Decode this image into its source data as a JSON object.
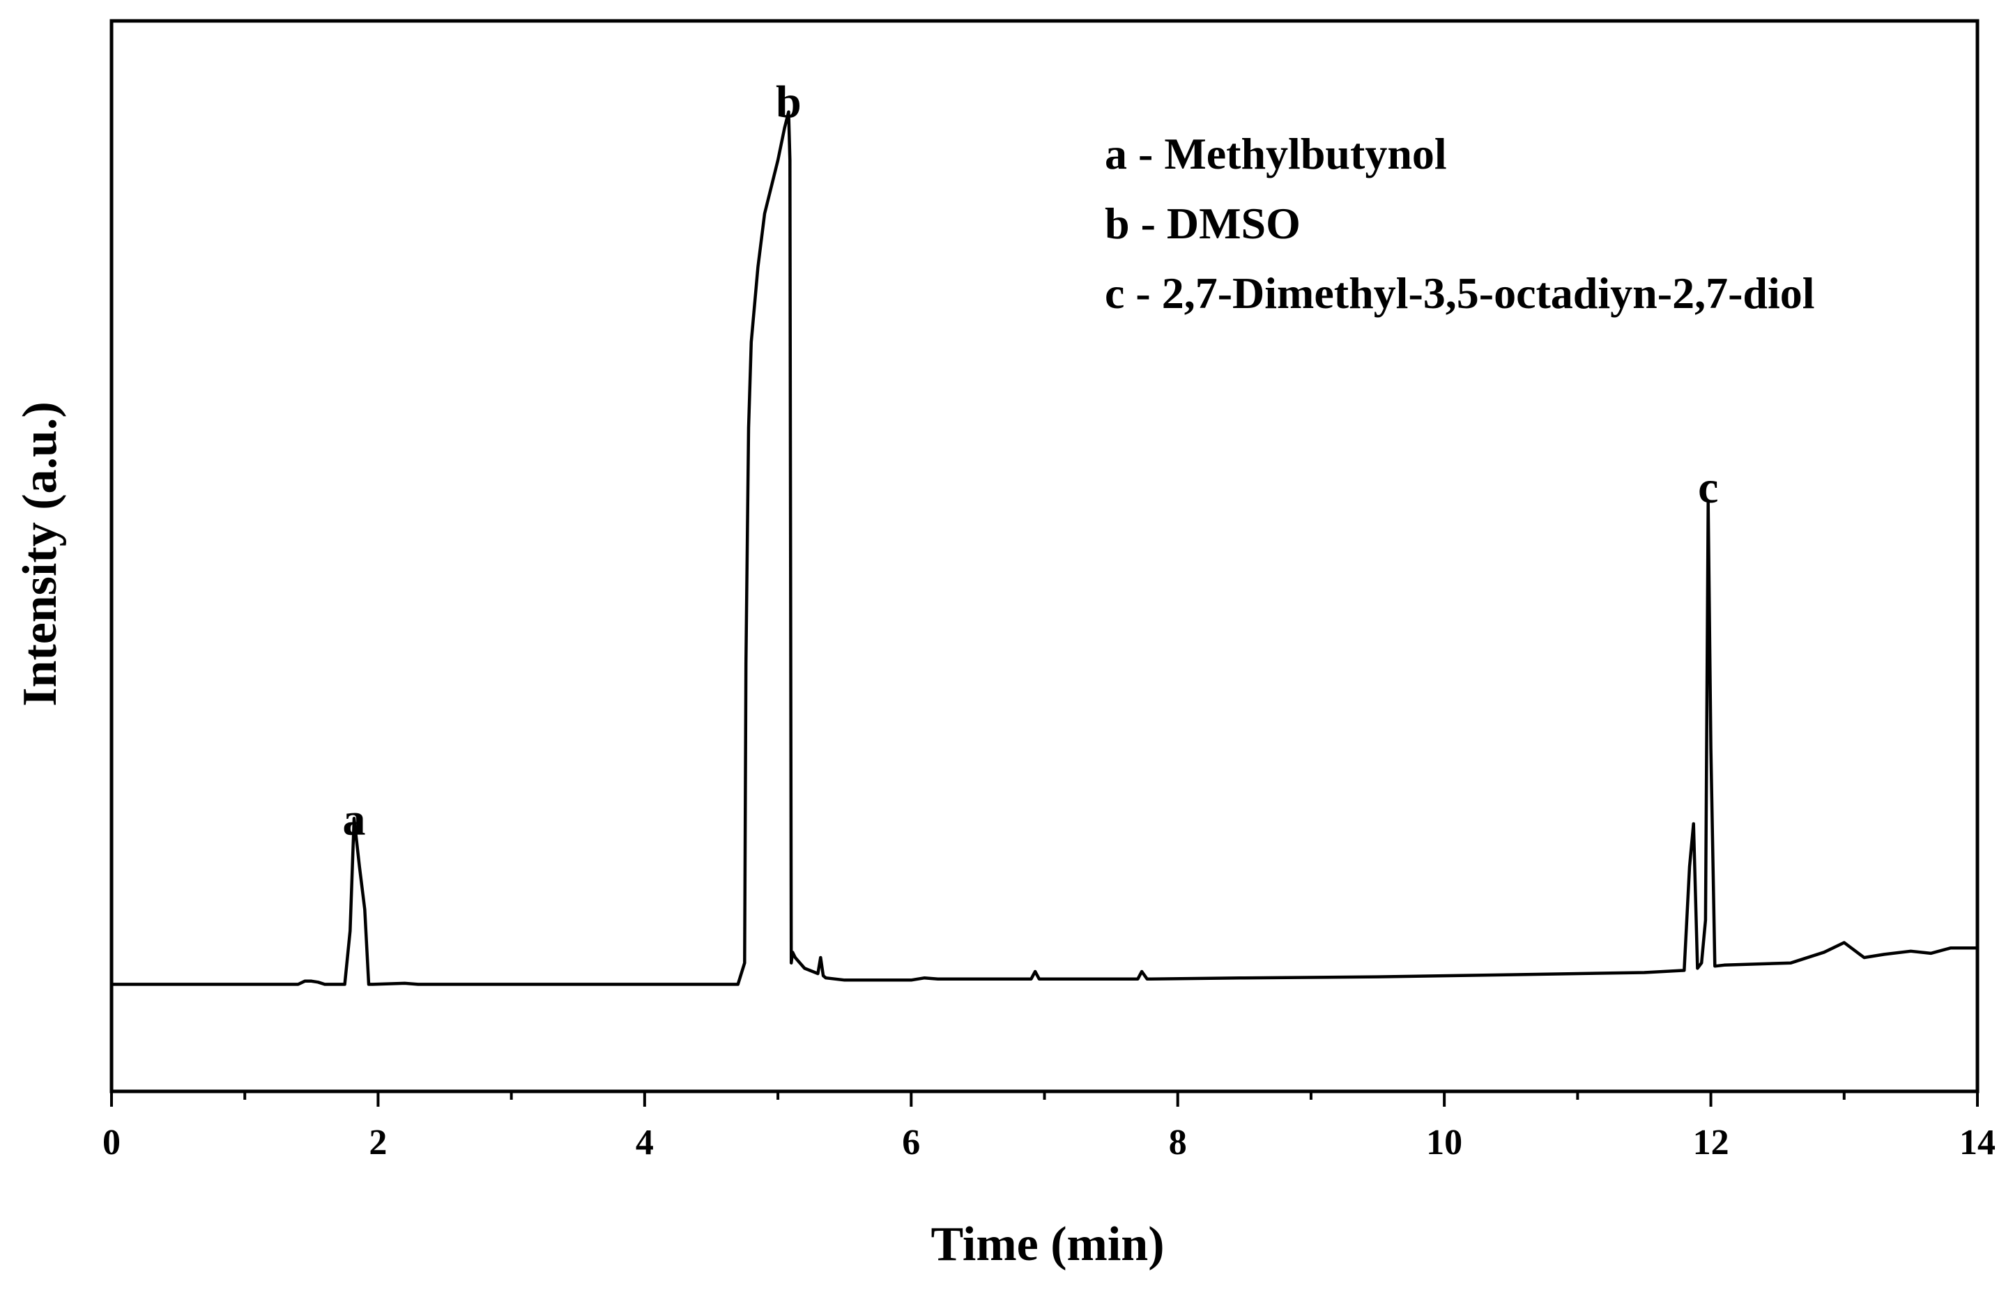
{
  "chart_data": {
    "type": "line",
    "title": "",
    "xlabel": "Time (min)",
    "ylabel": "Intensity (a.u.)",
    "xlim": [
      0,
      14
    ],
    "ylim": [
      0,
      1.0
    ],
    "x_ticks": [
      0,
      2,
      4,
      6,
      8,
      10,
      12,
      14
    ],
    "x_minor_ticks": [
      1,
      3,
      5,
      7,
      9,
      11,
      13
    ],
    "y_ticks_shown": false,
    "grid": false,
    "legend": {
      "placement": "top-right",
      "entries": [
        "a - Methylbutynol",
        "b - DMSO",
        "c - 2,7-Dimethyl-3,5-octadiyn-2,7-diol"
      ]
    },
    "peak_labels": [
      {
        "label": "a",
        "x": 1.82,
        "y": 0.24
      },
      {
        "label": "b",
        "x": 5.08,
        "y": 0.91
      },
      {
        "label": "c",
        "x": 11.98,
        "y": 0.55
      }
    ],
    "series": [
      {
        "x": [
          0,
          1.4,
          1.45,
          1.5,
          1.55,
          1.6,
          1.75,
          1.79,
          1.82,
          1.86,
          1.9,
          1.93,
          1.96,
          2.2,
          2.3,
          3.0,
          4.0,
          4.7,
          4.75,
          4.76,
          4.78,
          4.8,
          4.85,
          4.9,
          5.0,
          5.05,
          5.08,
          5.09,
          5.1,
          5.11,
          5.13,
          5.2,
          5.3,
          5.32,
          5.34,
          5.36,
          5.5,
          6.0,
          6.1,
          6.2,
          6.9,
          6.93,
          6.96,
          7.0,
          7.7,
          7.73,
          7.77,
          7.8,
          8.5,
          9.5,
          10.5,
          11.5,
          11.8,
          11.84,
          11.87,
          11.9,
          11.93,
          11.96,
          11.98,
          12.0,
          12.03,
          12.1,
          12.6,
          12.85,
          13.0,
          13.15,
          13.3,
          13.5,
          13.65,
          13.8,
          14.0
        ],
        "y": [
          0.1,
          0.1,
          0.103,
          0.103,
          0.102,
          0.1,
          0.1,
          0.15,
          0.255,
          0.21,
          0.17,
          0.1,
          0.1,
          0.101,
          0.1,
          0.1,
          0.1,
          0.1,
          0.12,
          0.4,
          0.62,
          0.7,
          0.77,
          0.82,
          0.87,
          0.9,
          0.915,
          0.87,
          0.12,
          0.13,
          0.125,
          0.115,
          0.11,
          0.125,
          0.108,
          0.106,
          0.104,
          0.104,
          0.106,
          0.105,
          0.105,
          0.112,
          0.105,
          0.105,
          0.105,
          0.112,
          0.105,
          0.105,
          0.106,
          0.107,
          0.109,
          0.111,
          0.113,
          0.21,
          0.25,
          0.115,
          0.12,
          0.16,
          0.55,
          0.32,
          0.117,
          0.118,
          0.12,
          0.13,
          0.139,
          0.125,
          0.128,
          0.131,
          0.129,
          0.134,
          0.134
        ]
      }
    ]
  }
}
